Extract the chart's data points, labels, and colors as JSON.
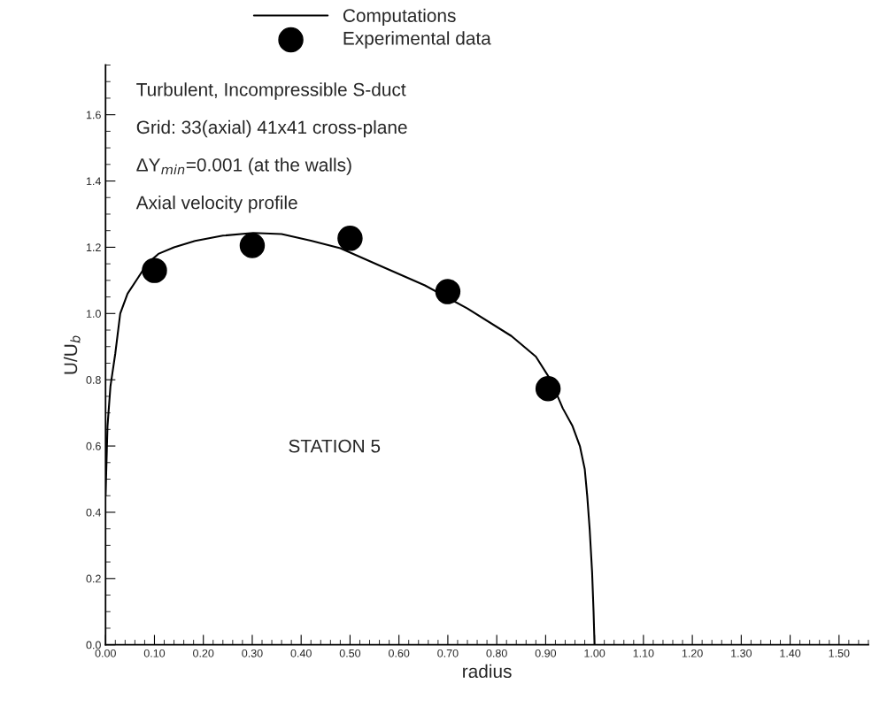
{
  "chart_data": {
    "type": "line",
    "xlabel": "radius",
    "ylabel": "U/U$_{b}$",
    "xlim": [
      0,
      1.56
    ],
    "ylim": [
      0,
      1.75
    ],
    "xticks": [
      {
        "value": 0,
        "label": "0.00"
      },
      {
        "value": 0.1,
        "label": "0.10"
      },
      {
        "value": 0.2,
        "label": "0.20"
      },
      {
        "value": 0.3,
        "label": "0.30"
      },
      {
        "value": 0.4,
        "label": "0.40"
      },
      {
        "value": 0.5,
        "label": "0.50"
      },
      {
        "value": 0.6,
        "label": "0.60"
      },
      {
        "value": 0.7,
        "label": "0.70"
      },
      {
        "value": 0.8,
        "label": "0.80"
      },
      {
        "value": 0.9,
        "label": "0.90"
      },
      {
        "value": 1.0,
        "label": "1.00"
      },
      {
        "value": 1.1,
        "label": "1.10"
      },
      {
        "value": 1.2,
        "label": "1.20"
      },
      {
        "value": 1.3,
        "label": "1.30"
      },
      {
        "value": 1.4,
        "label": "1.40"
      },
      {
        "value": 1.5,
        "label": "1.50"
      }
    ],
    "yticks": [
      {
        "value": 0,
        "label": "0.0"
      },
      0.2,
      0.4,
      0.6,
      0.8,
      {
        "value": 1,
        "label": "1.0"
      },
      1.2,
      1.4,
      1.6
    ],
    "grid": false,
    "legend": "top",
    "series": [
      {
        "name": "Computations",
        "color": "#000000",
        "marker": "none",
        "line_style": "solid",
        "x": [
          0.0,
          0.004,
          0.01,
          0.02,
          0.03,
          0.045,
          0.066,
          0.085,
          0.108,
          0.14,
          0.183,
          0.24,
          0.302,
          0.36,
          0.42,
          0.48,
          0.56,
          0.653,
          0.74,
          0.83,
          0.88,
          0.91,
          0.935,
          0.955,
          0.97,
          0.98,
          0.985,
          0.99,
          0.995,
          0.998,
          1.0
        ],
        "values": [
          0.45,
          0.66,
          0.78,
          0.88,
          1.0,
          1.06,
          1.107,
          1.15,
          1.18,
          1.2,
          1.219,
          1.235,
          1.243,
          1.24,
          1.22,
          1.197,
          1.145,
          1.085,
          1.015,
          0.932,
          0.87,
          0.8,
          0.714,
          0.66,
          0.6,
          0.53,
          0.45,
          0.35,
          0.22,
          0.1,
          0.0
        ]
      },
      {
        "name": "Experimental data",
        "type": "scatter",
        "color": "#000000",
        "marker": "circle",
        "x": [
          0.1,
          0.3,
          0.5,
          0.7,
          0.905
        ],
        "values": [
          1.13,
          1.205,
          1.227,
          1.066,
          0.773
        ]
      }
    ],
    "annotations": [
      "Turbulent, Incompressible S-duct",
      "Grid: 33(axial) 41x41 cross-plane",
      "ΔY$_{min}$=0.001 (at the walls)",
      "Axial velocity profile",
      "STATION 5"
    ]
  }
}
